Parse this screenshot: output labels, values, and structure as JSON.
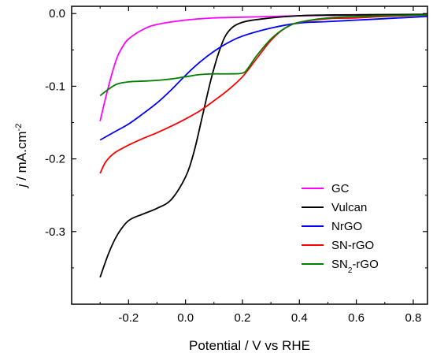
{
  "chart_data": {
    "type": "line",
    "xlabel": "Potential  / V vs RHE",
    "ylabel": {
      "italic": "j",
      "rest": " / mA.cm",
      "sup": "-2"
    },
    "xlim": [
      -0.4,
      0.85
    ],
    "ylim": [
      -0.4,
      0.01
    ],
    "xticks": [
      -0.2,
      0.0,
      0.2,
      0.4,
      0.6,
      0.8
    ],
    "xtick_labels": [
      "-0.2",
      "0.0",
      "0.2",
      "0.4",
      "0.6",
      "0.8"
    ],
    "yticks": [
      0.0,
      -0.1,
      -0.2,
      -0.3
    ],
    "ytick_labels": [
      "0.0",
      "-0.1",
      "-0.2",
      "-0.3"
    ],
    "grid": false,
    "legend_position": "bottom-right",
    "series": [
      {
        "name": "GC",
        "label_parts": [
          {
            "t": "GC"
          }
        ],
        "color": "#ff00ff",
        "points": [
          [
            -0.3,
            -0.148
          ],
          [
            -0.28,
            -0.115
          ],
          [
            -0.26,
            -0.085
          ],
          [
            -0.24,
            -0.06
          ],
          [
            -0.22,
            -0.045
          ],
          [
            -0.2,
            -0.035
          ],
          [
            -0.15,
            -0.022
          ],
          [
            -0.1,
            -0.015
          ],
          [
            0.0,
            -0.009
          ],
          [
            0.1,
            -0.006
          ],
          [
            0.2,
            -0.005
          ],
          [
            0.3,
            -0.004
          ],
          [
            0.4,
            -0.003
          ],
          [
            0.6,
            -0.002
          ],
          [
            0.85,
            -0.002
          ]
        ]
      },
      {
        "name": "Vulcan",
        "label_parts": [
          {
            "t": "Vulcan"
          }
        ],
        "color": "#000000",
        "points": [
          [
            -0.3,
            -0.363
          ],
          [
            -0.27,
            -0.33
          ],
          [
            -0.24,
            -0.305
          ],
          [
            -0.2,
            -0.285
          ],
          [
            -0.15,
            -0.276
          ],
          [
            -0.1,
            -0.268
          ],
          [
            -0.05,
            -0.256
          ],
          [
            0.0,
            -0.225
          ],
          [
            0.03,
            -0.19
          ],
          [
            0.06,
            -0.14
          ],
          [
            0.09,
            -0.09
          ],
          [
            0.12,
            -0.05
          ],
          [
            0.15,
            -0.025
          ],
          [
            0.2,
            -0.012
          ],
          [
            0.3,
            -0.006
          ],
          [
            0.4,
            -0.003
          ],
          [
            0.5,
            -0.002
          ],
          [
            0.85,
            -0.001
          ]
        ]
      },
      {
        "name": "NrGO",
        "label_parts": [
          {
            "t": "NrGO"
          }
        ],
        "color": "#0000ff",
        "points": [
          [
            -0.3,
            -0.174
          ],
          [
            -0.25,
            -0.163
          ],
          [
            -0.2,
            -0.152
          ],
          [
            -0.15,
            -0.138
          ],
          [
            -0.1,
            -0.123
          ],
          [
            -0.05,
            -0.105
          ],
          [
            0.0,
            -0.085
          ],
          [
            0.05,
            -0.067
          ],
          [
            0.1,
            -0.052
          ],
          [
            0.15,
            -0.04
          ],
          [
            0.2,
            -0.031
          ],
          [
            0.3,
            -0.02
          ],
          [
            0.4,
            -0.013
          ],
          [
            0.5,
            -0.011
          ],
          [
            0.6,
            -0.009
          ],
          [
            0.7,
            -0.007
          ],
          [
            0.85,
            -0.004
          ]
        ]
      },
      {
        "name": "SN-rGO",
        "label_parts": [
          {
            "t": "SN-rGO"
          }
        ],
        "color": "#ff0000",
        "points": [
          [
            -0.3,
            -0.22
          ],
          [
            -0.28,
            -0.204
          ],
          [
            -0.25,
            -0.192
          ],
          [
            -0.2,
            -0.181
          ],
          [
            -0.15,
            -0.172
          ],
          [
            -0.1,
            -0.164
          ],
          [
            -0.05,
            -0.155
          ],
          [
            0.0,
            -0.145
          ],
          [
            0.05,
            -0.134
          ],
          [
            0.1,
            -0.12
          ],
          [
            0.15,
            -0.105
          ],
          [
            0.2,
            -0.087
          ],
          [
            0.25,
            -0.062
          ],
          [
            0.3,
            -0.037
          ],
          [
            0.35,
            -0.02
          ],
          [
            0.4,
            -0.012
          ],
          [
            0.5,
            -0.007
          ],
          [
            0.6,
            -0.006
          ],
          [
            0.7,
            -0.004
          ],
          [
            0.85,
            -0.002
          ]
        ]
      },
      {
        "name": "SN2-rGO",
        "label_parts": [
          {
            "t": "SN"
          },
          {
            "t": "2",
            "sub": true
          },
          {
            "t": "-rGO"
          }
        ],
        "color": "#008000",
        "points": [
          [
            -0.3,
            -0.113
          ],
          [
            -0.27,
            -0.104
          ],
          [
            -0.24,
            -0.097
          ],
          [
            -0.2,
            -0.094
          ],
          [
            -0.15,
            -0.093
          ],
          [
            -0.1,
            -0.092
          ],
          [
            -0.05,
            -0.09
          ],
          [
            0.0,
            -0.087
          ],
          [
            0.05,
            -0.084
          ],
          [
            0.1,
            -0.083
          ],
          [
            0.15,
            -0.083
          ],
          [
            0.2,
            -0.082
          ],
          [
            0.22,
            -0.075
          ],
          [
            0.25,
            -0.058
          ],
          [
            0.3,
            -0.035
          ],
          [
            0.35,
            -0.02
          ],
          [
            0.4,
            -0.012
          ],
          [
            0.5,
            -0.006
          ],
          [
            0.6,
            -0.004
          ],
          [
            0.7,
            -0.003
          ],
          [
            0.85,
            -0.002
          ]
        ]
      }
    ]
  }
}
